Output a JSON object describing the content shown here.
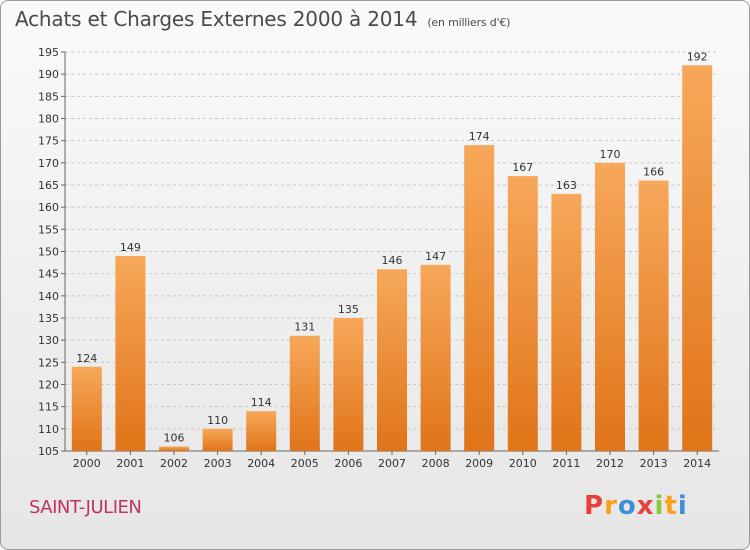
{
  "title": "Achats et Charges Externes 2000 à 2014",
  "subtitle": "(en milliers d'€)",
  "commune": "SAINT-JULIEN",
  "logo": {
    "letters": [
      "P",
      "r",
      "o",
      "x",
      "i",
      "t",
      "i"
    ],
    "colors": [
      "#e8403a",
      "#f7a21b",
      "#3f8fd8",
      "#e8403a",
      "#8dc63f",
      "#f7a21b",
      "#3f8fd8"
    ]
  },
  "colors": {
    "bar_top": "#f7a85a",
    "bar_bottom": "#e07418",
    "grid": "#c8c8c8"
  },
  "chart_data": {
    "type": "bar",
    "categories": [
      "2000",
      "2001",
      "2002",
      "2003",
      "2004",
      "2005",
      "2006",
      "2007",
      "2008",
      "2009",
      "2010",
      "2011",
      "2012",
      "2013",
      "2014"
    ],
    "values": [
      124,
      149,
      106,
      110,
      114,
      131,
      135,
      146,
      147,
      174,
      167,
      163,
      170,
      166,
      192
    ],
    "ylim": [
      105,
      195
    ],
    "yticks": [
      105,
      110,
      115,
      120,
      125,
      130,
      135,
      140,
      145,
      150,
      155,
      160,
      165,
      170,
      175,
      180,
      185,
      190,
      195
    ],
    "grid": true
  }
}
